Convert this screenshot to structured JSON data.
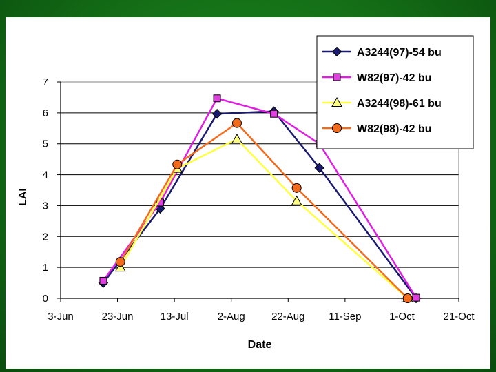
{
  "chart_data": {
    "type": "line",
    "title": "",
    "xlabel": "Date",
    "ylabel": "LAI",
    "ylim": [
      0,
      7
    ],
    "yticks": [
      "0",
      "1",
      "2",
      "3",
      "4",
      "5",
      "6",
      "7"
    ],
    "xlim_days": [
      0,
      140
    ],
    "xticks": [
      {
        "label": "3-Jun",
        "day": 0
      },
      {
        "label": "23-Jun",
        "day": 20
      },
      {
        "label": "13-Jul",
        "day": 40
      },
      {
        "label": "2-Aug",
        "day": 60
      },
      {
        "label": "22-Aug",
        "day": 80
      },
      {
        "label": "11-Sep",
        "day": 100
      },
      {
        "label": "1-Oct",
        "day": 120
      },
      {
        "label": "21-Oct",
        "day": 140
      }
    ],
    "grid": "horizontal",
    "legend_position": "top-right",
    "series": [
      {
        "name": "A3244(97)-54 bu",
        "color": "#1a1a6e",
        "marker": "diamond",
        "marker_fill": "#1a1a6e",
        "points": [
          [
            15,
            0.5
          ],
          [
            35,
            2.9
          ],
          [
            55,
            5.97
          ],
          [
            75,
            6.05
          ],
          [
            91,
            4.22
          ],
          [
            125,
            0.0
          ]
        ]
      },
      {
        "name": "W82(97)-42 bu",
        "color": "#e020e0",
        "marker": "square",
        "marker_fill": "#e040e0",
        "points": [
          [
            15,
            0.57
          ],
          [
            35,
            3.1
          ],
          [
            55,
            6.47
          ],
          [
            75,
            5.97
          ],
          [
            91,
            5.0
          ],
          [
            125,
            0.02
          ]
        ]
      },
      {
        "name": "A3244(98)-61 bu",
        "color": "#ffff40",
        "marker": "triangle",
        "marker_fill": "#ffff80",
        "points": [
          [
            21,
            1.0
          ],
          [
            41,
            4.2
          ],
          [
            62,
            5.15
          ],
          [
            83,
            3.15
          ],
          [
            122,
            0.0
          ]
        ]
      },
      {
        "name": "W82(98)-42 bu",
        "color": "#f26b1d",
        "marker": "circle",
        "marker_fill": "#f26b1d",
        "points": [
          [
            21,
            1.18
          ],
          [
            41,
            4.33
          ],
          [
            62,
            5.67
          ],
          [
            83,
            3.57
          ],
          [
            122,
            0.0
          ]
        ]
      }
    ]
  }
}
